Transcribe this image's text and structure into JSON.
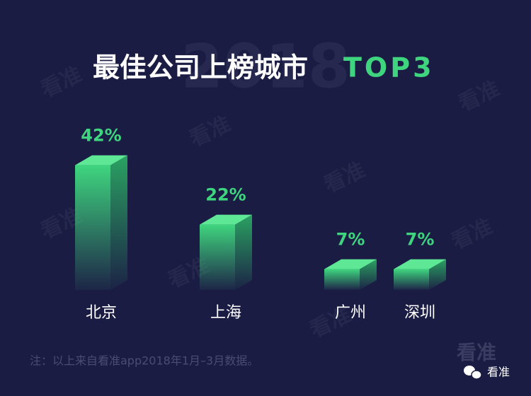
{
  "chart_data": {
    "type": "bar3d",
    "title": "最佳公司上榜城市",
    "title_highlight": "TOP3",
    "watermark": "2018",
    "watermark_brand": "看准",
    "categories": [
      "北京",
      "上海",
      "广州",
      "深圳"
    ],
    "values": [
      42,
      22,
      7,
      7
    ],
    "value_labels": [
      "42%",
      "22%",
      "7%",
      "7%"
    ],
    "color": "#3fd57f",
    "footnote": "注：以上来自看准app2018年1月–3月数据。",
    "logo": "看准",
    "wechat_name": "看准"
  }
}
